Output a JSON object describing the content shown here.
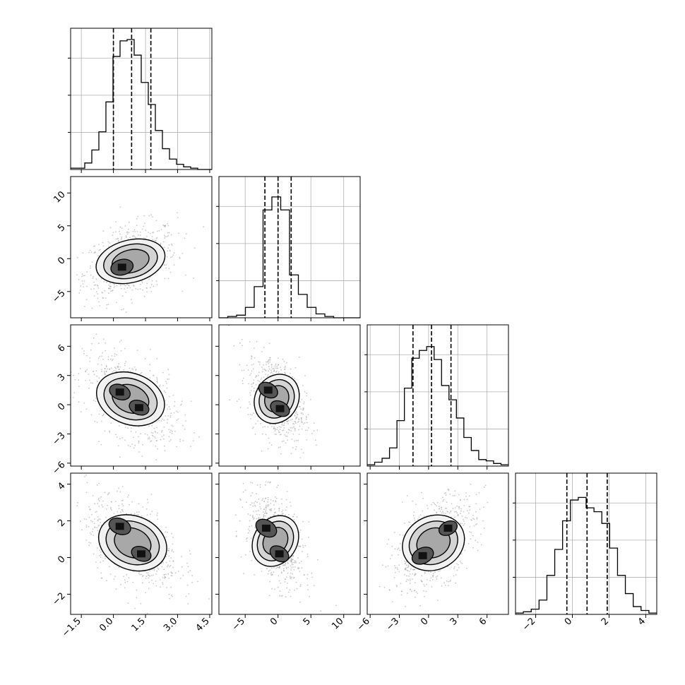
{
  "chart_data": {
    "type": "corner",
    "title": "",
    "grid": true,
    "variables": [
      {
        "label": "",
        "range": [
          -2.0,
          4.6
        ],
        "ticks": [
          -1.5,
          0.0,
          1.5,
          3.0,
          4.5
        ],
        "tick_labels": [
          "−1.5",
          "0.0",
          "1.5",
          "3.0",
          "4.5"
        ],
        "quantiles": [
          0.0,
          0.85,
          1.75
        ],
        "hist": [
          0.01,
          0.01,
          0.05,
          0.15,
          0.29,
          0.52,
          0.87,
          0.99,
          1.0,
          0.88,
          0.67,
          0.5,
          0.3,
          0.16,
          0.08,
          0.04,
          0.02,
          0.01,
          0.0,
          0.0
        ]
      },
      {
        "label": "",
        "range": [
          -9.0,
          12.5
        ],
        "ticks": [
          -5,
          0,
          5,
          10
        ],
        "tick_labels": [
          "−5",
          "0",
          "5",
          "10"
        ],
        "quantiles": [
          -2.0,
          0.0,
          2.0
        ],
        "hist": [
          0.0,
          0.01,
          0.02,
          0.08,
          0.24,
          0.83,
          0.93,
          0.83,
          0.33,
          0.18,
          0.08,
          0.03,
          0.01,
          0.0,
          0.0,
          0.0
        ]
      },
      {
        "label": "",
        "range": [
          -6.3,
          8.2
        ],
        "ticks": [
          -6,
          -3,
          0,
          3,
          6
        ],
        "tick_labels": [
          "−6",
          "−3",
          "0",
          "3",
          "6"
        ],
        "quantiles": [
          -1.6,
          0.3,
          2.3
        ],
        "hist": [
          0.01,
          0.03,
          0.06,
          0.14,
          0.35,
          0.6,
          0.83,
          0.89,
          0.92,
          0.82,
          0.62,
          0.51,
          0.37,
          0.22,
          0.12,
          0.05,
          0.04,
          0.02,
          0.01
        ]
      },
      {
        "label": "",
        "range": [
          -3.1,
          4.6
        ],
        "ticks": [
          -2,
          0,
          2,
          4
        ],
        "tick_labels": [
          "−2",
          "0",
          "2",
          "4"
        ],
        "quantiles": [
          -0.3,
          0.8,
          1.9
        ],
        "hist": [
          0.01,
          0.02,
          0.04,
          0.11,
          0.3,
          0.5,
          0.72,
          0.88,
          0.9,
          0.82,
          0.79,
          0.7,
          0.51,
          0.3,
          0.16,
          0.06,
          0.03,
          0.01
        ]
      }
    ],
    "pairs": [
      {
        "row": 1,
        "col": 0,
        "corr": 0.35,
        "mean": [
          0.8,
          -0.4
        ],
        "sd": [
          0.8,
          2.1
        ],
        "blobs": [
          [
            0.4,
            -1.3,
            1.0
          ]
        ]
      },
      {
        "row": 2,
        "col": 0,
        "corr": -0.45,
        "mean": [
          0.8,
          0.6
        ],
        "sd": [
          0.8,
          1.7
        ],
        "blobs": [
          [
            0.3,
            1.3,
            0.95
          ],
          [
            1.2,
            -0.3,
            0.9
          ]
        ]
      },
      {
        "row": 2,
        "col": 1,
        "corr": -0.4,
        "mean": [
          -0.2,
          0.6
        ],
        "sd": [
          1.6,
          1.7
        ],
        "blobs": [
          [
            -1.5,
            1.5,
            0.9
          ],
          [
            0.3,
            -0.4,
            0.9
          ]
        ]
      },
      {
        "row": 3,
        "col": 0,
        "corr": -0.45,
        "mean": [
          0.9,
          0.8
        ],
        "sd": [
          0.8,
          0.95
        ],
        "blobs": [
          [
            0.3,
            1.7,
            1.0
          ],
          [
            1.3,
            0.2,
            0.9
          ]
        ]
      },
      {
        "row": 3,
        "col": 1,
        "corr": -0.45,
        "mean": [
          -0.4,
          0.9
        ],
        "sd": [
          1.6,
          0.95
        ],
        "blobs": [
          [
            -1.8,
            1.6,
            1.0
          ],
          [
            0.2,
            0.2,
            0.9
          ]
        ]
      },
      {
        "row": 3,
        "col": 2,
        "corr": 0.5,
        "mean": [
          0.5,
          0.8
        ],
        "sd": [
          1.6,
          0.95
        ],
        "blobs": [
          [
            -0.6,
            0.1,
            1.0
          ],
          [
            2.0,
            1.6,
            0.85
          ]
        ]
      }
    ]
  }
}
